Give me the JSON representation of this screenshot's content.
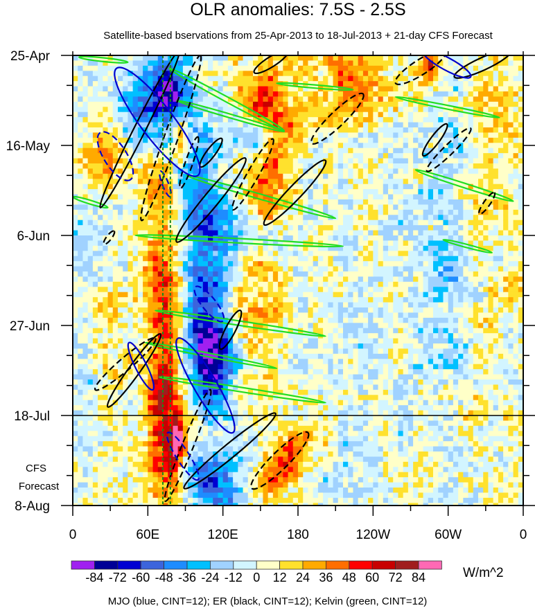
{
  "chart_data": {
    "type": "heatmap",
    "title": "OLR anomalies: 7.5S - 2.5S",
    "subtitle": "Satellite-based bservations from 25-Apr-2013 to 18-Jul-2013 + 21-day CFS Forecast",
    "xlabel": "",
    "ylabel": "",
    "xlim": [
      0,
      360
    ],
    "ylim_days": [
      0,
      105
    ],
    "x_ticks": [
      {
        "lon": 0,
        "label": "0"
      },
      {
        "lon": 60,
        "label": "60E"
      },
      {
        "lon": 120,
        "label": "120E"
      },
      {
        "lon": 180,
        "label": "180"
      },
      {
        "lon": 240,
        "label": "120W"
      },
      {
        "lon": 300,
        "label": "60W"
      },
      {
        "lon": 360,
        "label": "0"
      }
    ],
    "x_minor_step": 30,
    "y_ticks": [
      {
        "day": 0,
        "label": "25-Apr"
      },
      {
        "day": 21,
        "label": "16-May"
      },
      {
        "day": 42,
        "label": "6-Jun"
      },
      {
        "day": 63,
        "label": "27-Jun"
      },
      {
        "day": 84,
        "label": "18-Jul"
      },
      {
        "day": 105,
        "label": "8-Aug"
      }
    ],
    "y_minor_step": 7,
    "forecast_start_day": 84,
    "forecast_label": [
      "CFS",
      "Forecast"
    ],
    "reference_lons": [
      72,
      78
    ],
    "colorbar": {
      "levels": [
        -84,
        -72,
        -60,
        -48,
        -36,
        -24,
        -12,
        0,
        12,
        24,
        36,
        48,
        60,
        72,
        84
      ],
      "labels": [
        "-84",
        "-72",
        "-60",
        "-48",
        "-36",
        "-24",
        "-12",
        "0",
        "12",
        "24",
        "36",
        "48",
        "60",
        "72",
        "84"
      ],
      "colors": [
        "#a020f0",
        "#000096",
        "#0000d2",
        "#3c64dc",
        "#1e8cff",
        "#00c0ff",
        "#a0d2ff",
        "#d2f5ff",
        "#ffffc8",
        "#ffe12d",
        "#ffaa00",
        "#ff6e00",
        "#ff0000",
        "#c80000",
        "#a01e1e",
        "#ff69b4"
      ],
      "units": "W/m^2"
    },
    "legend_note": "MJO (blue, CINT=12); ER (black, CINT=12); Kelvin (green, CINT=12)",
    "anomaly_centers": [
      {
        "lon": 75,
        "day": 8,
        "value": -85,
        "sl": 10,
        "sd": 6,
        "drift": 0
      },
      {
        "lon": 60,
        "day": 12,
        "value": -40,
        "sl": 25,
        "sd": 9,
        "drift": 0
      },
      {
        "lon": 72,
        "day": 50,
        "value": 38,
        "sl": 10,
        "sd": 40,
        "drift": 0
      },
      {
        "lon": 76,
        "day": 88,
        "value": 42,
        "sl": 9,
        "sd": 14,
        "drift": 0
      },
      {
        "lon": 84,
        "day": 90,
        "value": 70,
        "sl": 4,
        "sd": 3,
        "drift": 0
      },
      {
        "lon": 86,
        "day": 18,
        "value": 62,
        "sl": 5,
        "sd": 4,
        "drift": 0
      },
      {
        "lon": 160,
        "day": 24,
        "value": 45,
        "sl": 11,
        "sd": 11,
        "drift": -0.5
      },
      {
        "lon": 150,
        "day": 10,
        "value": 32,
        "sl": 12,
        "sd": 6,
        "drift": 0
      },
      {
        "lon": 220,
        "day": 5,
        "value": 32,
        "sl": 22,
        "sd": 8,
        "drift": 0
      },
      {
        "lon": 28,
        "day": 22,
        "value": 42,
        "sl": 12,
        "sd": 6,
        "drift": 0
      },
      {
        "lon": 25,
        "day": 60,
        "value": 22,
        "sl": 14,
        "sd": 12,
        "drift": 0
      },
      {
        "lon": 170,
        "day": 95,
        "value": 45,
        "sl": 14,
        "sd": 6,
        "drift": -2
      },
      {
        "lon": 150,
        "day": 55,
        "value": 22,
        "sl": 15,
        "sd": 12,
        "drift": 0
      },
      {
        "lon": 100,
        "day": 30,
        "value": -42,
        "sl": 14,
        "sd": 14,
        "drift": 0.4
      },
      {
        "lon": 105,
        "day": 60,
        "value": -50,
        "sl": 12,
        "sd": 12,
        "drift": 0
      },
      {
        "lon": 112,
        "day": 72,
        "value": -60,
        "sl": 12,
        "sd": 8,
        "drift": 0
      },
      {
        "lon": 112,
        "day": 100,
        "value": -58,
        "sl": 18,
        "sd": 6,
        "drift": 0
      },
      {
        "lon": 150,
        "day": 20,
        "value": -38,
        "sl": 14,
        "sd": 4,
        "drift": 2
      },
      {
        "lon": 140,
        "day": 42,
        "value": -35,
        "sl": 20,
        "sd": 4,
        "drift": 2
      },
      {
        "lon": 20,
        "day": 45,
        "value": -20,
        "sl": 18,
        "sd": 10,
        "drift": 0
      },
      {
        "lon": 10,
        "day": 70,
        "value": -18,
        "sl": 15,
        "sd": 12,
        "drift": 0
      },
      {
        "lon": 230,
        "day": 65,
        "value": -10,
        "sl": 35,
        "sd": 30,
        "drift": 0
      },
      {
        "lon": 300,
        "day": 60,
        "value": -24,
        "sl": 14,
        "sd": 35,
        "drift": 0
      },
      {
        "lon": 325,
        "day": 35,
        "value": 32,
        "sl": 8,
        "sd": 5,
        "drift": 0
      },
      {
        "lon": 340,
        "day": 10,
        "value": 22,
        "sl": 12,
        "sd": 8,
        "drift": 0
      },
      {
        "lon": 285,
        "day": 2,
        "value": 60,
        "sl": 5,
        "sd": 3,
        "drift": 0
      },
      {
        "lon": 310,
        "day": 80,
        "value": 12,
        "sl": 15,
        "sd": 12,
        "drift": 0
      }
    ],
    "contours": {
      "kelvin": [
        {
          "p1": [
            5,
            0.4
          ],
          "p2": [
            44,
            1.6
          ],
          "w": 3,
          "sign": 1
        },
        {
          "p1": [
            77,
            3
          ],
          "p2": [
            169,
            17.5
          ],
          "w": 4,
          "sign": 1
        },
        {
          "p1": [
            83,
            10.5
          ],
          "p2": [
            169,
            17.8
          ],
          "w": 3,
          "sign": 1
        },
        {
          "p1": [
            258,
            9.7
          ],
          "p2": [
            341,
            14.5
          ],
          "w": 3,
          "sign": 1
        },
        {
          "p1": [
            163,
            6.5
          ],
          "p2": [
            224,
            8
          ],
          "w": 2.5,
          "sign": 1
        },
        {
          "p1": [
            91,
            28
          ],
          "p2": [
            210,
            38
          ],
          "w": 4,
          "sign": 1
        },
        {
          "p1": [
            0,
            33
          ],
          "p2": [
            28,
            35.5
          ],
          "w": 3,
          "sign": 1
        },
        {
          "p1": [
            50,
            42
          ],
          "p2": [
            216,
            44.5
          ],
          "w": 3.5,
          "sign": 1
        },
        {
          "p1": [
            274,
            26.7
          ],
          "p2": [
            352,
            34
          ],
          "w": 3.5,
          "sign": 1
        },
        {
          "p1": [
            296,
            43
          ],
          "p2": [
            335,
            46
          ],
          "w": 2.5,
          "sign": 1
        },
        {
          "p1": [
            66,
            59.5
          ],
          "p2": [
            202,
            65.5
          ],
          "w": 3.5,
          "sign": 1
        },
        {
          "p1": [
            58,
            67
          ],
          "p2": [
            163,
            73
          ],
          "w": 3,
          "sign": 1
        },
        {
          "p1": [
            69,
            75
          ],
          "p2": [
            202,
            81
          ],
          "w": 3.5,
          "sign": 1
        }
      ],
      "er": [
        {
          "p1": [
            22,
            35.5
          ],
          "p2": [
            85,
            -1
          ],
          "w": 9,
          "sign": 1
        },
        {
          "p1": [
            83,
            43.5
          ],
          "p2": [
            138,
            24
          ],
          "w": 12,
          "sign": 1
        },
        {
          "p1": [
            102,
            26
          ],
          "p2": [
            119,
            19.4
          ],
          "w": 7,
          "sign": 1
        },
        {
          "p1": [
            153,
            39.5
          ],
          "p2": [
            202,
            24.5
          ],
          "w": 11,
          "sign": 1
        },
        {
          "p1": [
            280,
            23.4
          ],
          "p2": [
            299,
            16
          ],
          "w": 7,
          "sign": 1
        },
        {
          "p1": [
            145,
            4
          ],
          "p2": [
            172,
            -1
          ],
          "w": 8,
          "sign": 1
        },
        {
          "p1": [
            305,
            5
          ],
          "p2": [
            350,
            -1
          ],
          "w": 10,
          "sign": 1
        },
        {
          "p1": [
            118,
            68.5
          ],
          "p2": [
            134,
            59.5
          ],
          "w": 8,
          "sign": 1
        },
        {
          "p1": [
            28,
            82
          ],
          "p2": [
            70,
            65
          ],
          "w": 9,
          "sign": 1
        },
        {
          "p1": [
            89,
            101
          ],
          "p2": [
            162,
            83.5
          ],
          "w": 11,
          "sign": 1
        },
        {
          "p1": [
            25,
            44
          ],
          "p2": [
            33,
            41
          ],
          "w": 4,
          "sign": -1
        },
        {
          "p1": [
            55,
            38.5
          ],
          "p2": [
            102,
            0
          ],
          "w": 11,
          "sign": -1
        },
        {
          "p1": [
            86,
            31
          ],
          "p2": [
            100,
            19
          ],
          "w": 6,
          "sign": -1
        },
        {
          "p1": [
            128,
            36
          ],
          "p2": [
            160,
            19.5
          ],
          "w": 9,
          "sign": -1
        },
        {
          "p1": [
            191,
            20.5
          ],
          "p2": [
            232,
            9
          ],
          "w": 12,
          "sign": -1
        },
        {
          "p1": [
            258,
            6.5
          ],
          "p2": [
            298,
            -1
          ],
          "w": 12,
          "sign": -1
        },
        {
          "p1": [
            283,
            27
          ],
          "p2": [
            318,
            17
          ],
          "w": 8,
          "sign": -1
        },
        {
          "p1": [
            325,
            37
          ],
          "p2": [
            337,
            32
          ],
          "w": 5,
          "sign": -1
        },
        {
          "p1": [
            18,
            78
          ],
          "p2": [
            66,
            66
          ],
          "w": 10,
          "sign": -1
        },
        {
          "p1": [
            74,
            104
          ],
          "p2": [
            110,
            78
          ],
          "w": 9,
          "sign": -1
        },
        {
          "p1": [
            143,
            101
          ],
          "p2": [
            188,
            88
          ],
          "w": 14,
          "sign": -1
        }
      ],
      "mjo": [
        {
          "p1": [
            35,
            3
          ],
          "p2": [
            100,
            28
          ],
          "w": 26,
          "sign": 1
        },
        {
          "p1": [
            22,
            18
          ],
          "p2": [
            46,
            29
          ],
          "w": 18,
          "sign": -1
        },
        {
          "p1": [
            84,
            66
          ],
          "p2": [
            128,
            88
          ],
          "w": 18,
          "sign": 1
        },
        {
          "p1": [
            45,
            67
          ],
          "p2": [
            64,
            78
          ],
          "w": 9,
          "sign": 1
        },
        {
          "p1": [
            98,
            54
          ],
          "p2": [
            120,
            62
          ],
          "w": 11,
          "sign": -1
        },
        {
          "p1": [
            76,
            88
          ],
          "p2": [
            100,
            99
          ],
          "w": 10,
          "sign": -1
        },
        {
          "p1": [
            70,
            27
          ],
          "p2": [
            78,
            33
          ],
          "w": 5,
          "sign": -1
        },
        {
          "p1": [
            280,
            -1
          ],
          "p2": [
            318,
            5
          ],
          "w": 10,
          "sign": 1
        }
      ]
    }
  }
}
